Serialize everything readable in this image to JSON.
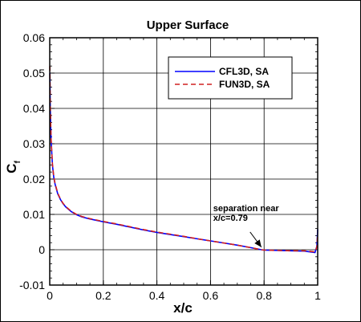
{
  "chart_data": {
    "type": "line",
    "title": "Upper Surface",
    "xlabel": "x/c",
    "ylabel": "C",
    "ylabel_sub": "f",
    "xlim": [
      0,
      1
    ],
    "ylim": [
      -0.01,
      0.06
    ],
    "xticks": [
      "0",
      "0.2",
      "0.4",
      "0.6",
      "0.8",
      "1"
    ],
    "xtick_values": [
      0,
      0.2,
      0.4,
      0.6,
      0.8,
      1
    ],
    "yticks": [
      "-0.01",
      "0",
      "0.01",
      "0.02",
      "0.03",
      "0.04",
      "0.05",
      "0.06"
    ],
    "ytick_values": [
      -0.01,
      0,
      0.01,
      0.02,
      0.03,
      0.04,
      0.05,
      0.06
    ],
    "grid": true,
    "legend_position": "top-right",
    "annotation": {
      "line1": "separation near",
      "line2": "x/c=0.79",
      "text_at": [
        0.61,
        0.0082
      ],
      "arrow_tip": [
        0.79,
        -0.0002
      ]
    },
    "series": [
      {
        "name": "CFL3D, SA",
        "color": "#0000ff",
        "dash": "solid",
        "x": [
          0.0005,
          0.002,
          0.005,
          0.01,
          0.015,
          0.02,
          0.03,
          0.04,
          0.05,
          0.06,
          0.08,
          0.1,
          0.12,
          0.15,
          0.2,
          0.25,
          0.3,
          0.35,
          0.4,
          0.45,
          0.5,
          0.55,
          0.6,
          0.65,
          0.7,
          0.75,
          0.79,
          0.8,
          0.85,
          0.9,
          0.95,
          0.99,
          0.997,
          1.0
        ],
        "y": [
          0.05,
          0.04,
          0.031,
          0.024,
          0.0205,
          0.0185,
          0.0158,
          0.0142,
          0.013,
          0.0121,
          0.0108,
          0.0099,
          0.0093,
          0.0087,
          0.0079,
          0.0072,
          0.0064,
          0.0056,
          0.0049,
          0.0043,
          0.0037,
          0.0031,
          0.0025,
          0.0019,
          0.0013,
          0.0006,
          0.0,
          -0.0001,
          -0.0002,
          -0.0003,
          -0.0004,
          -0.0008,
          0.001,
          0.0058
        ]
      },
      {
        "name": "FUN3D, SA",
        "color": "#d02020",
        "dash": "dashed",
        "x": [
          0.0005,
          0.002,
          0.005,
          0.01,
          0.015,
          0.02,
          0.03,
          0.04,
          0.05,
          0.06,
          0.08,
          0.1,
          0.12,
          0.15,
          0.2,
          0.25,
          0.3,
          0.35,
          0.4,
          0.45,
          0.5,
          0.55,
          0.6,
          0.65,
          0.7,
          0.75,
          0.79,
          0.8,
          0.85,
          0.9,
          0.95,
          0.99,
          0.997,
          1.0
        ],
        "y": [
          0.052,
          0.041,
          0.0315,
          0.0243,
          0.0207,
          0.0187,
          0.016,
          0.0143,
          0.0131,
          0.0122,
          0.0109,
          0.01,
          0.0094,
          0.0088,
          0.008,
          0.0073,
          0.0065,
          0.0057,
          0.005,
          0.0044,
          0.0038,
          0.0031,
          0.0025,
          0.0019,
          0.0013,
          0.0006,
          0.0,
          -0.0001,
          -0.0002,
          -0.0003,
          -0.0003,
          -0.0006,
          0.0008,
          0.0045
        ]
      }
    ]
  }
}
